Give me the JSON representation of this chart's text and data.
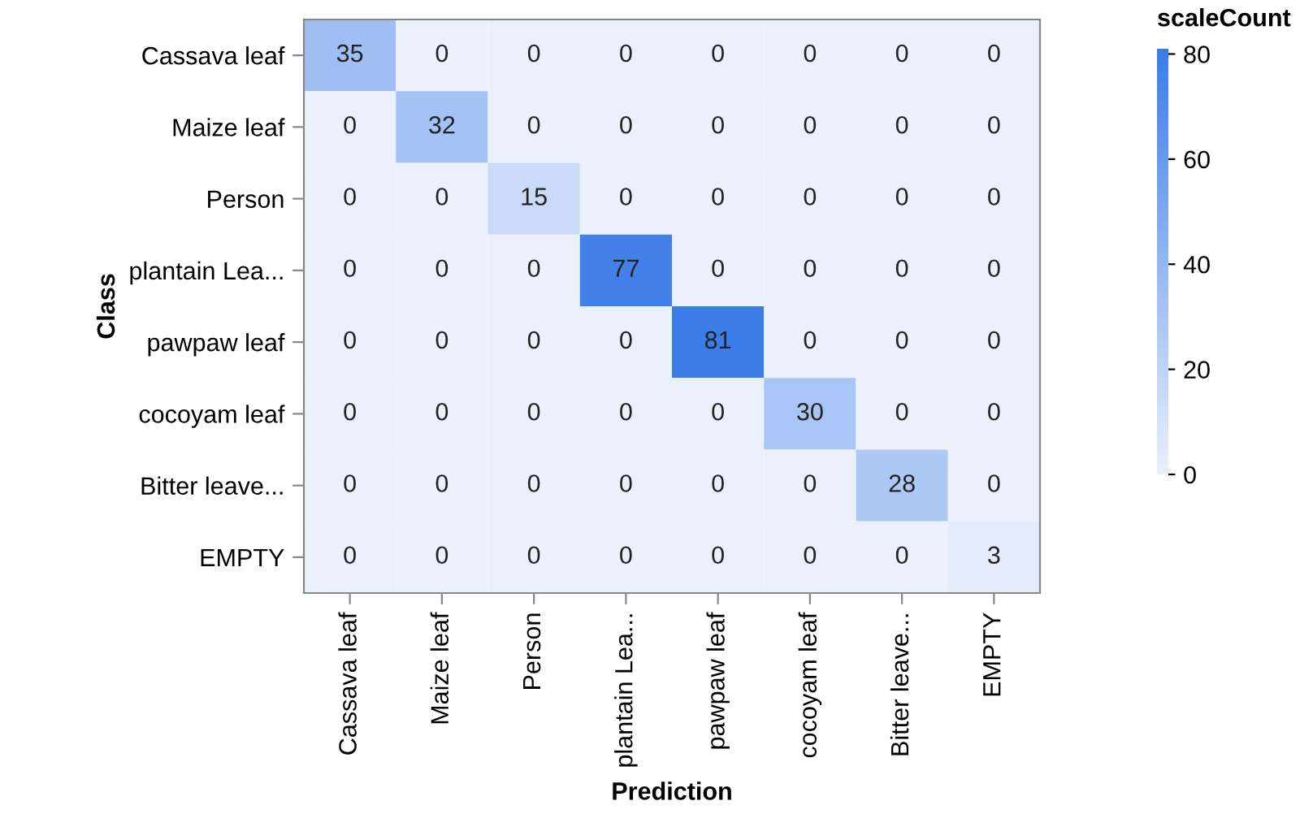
{
  "chart_data": {
    "type": "heatmap",
    "xlabel": "Prediction",
    "ylabel": "Class",
    "clabel": "scaleCount",
    "categories": [
      "Cassava leaf",
      "Maize leaf",
      "Person",
      "plantain Lea...",
      "pawpaw leaf",
      "cocoyam leaf",
      "Bitter leave...",
      "EMPTY"
    ],
    "y_categories": [
      "Cassava leaf",
      "Maize leaf",
      "Person",
      "plantain Lea...",
      "pawpaw leaf",
      "cocoyam leaf",
      "Bitter leave...",
      "EMPTY"
    ],
    "cells": [
      [
        35,
        0,
        0,
        0,
        0,
        0,
        0,
        0
      ],
      [
        0,
        32,
        0,
        0,
        0,
        0,
        0,
        0
      ],
      [
        0,
        0,
        15,
        0,
        0,
        0,
        0,
        0
      ],
      [
        0,
        0,
        0,
        77,
        0,
        0,
        0,
        0
      ],
      [
        0,
        0,
        0,
        0,
        81,
        0,
        0,
        0
      ],
      [
        0,
        0,
        0,
        0,
        0,
        30,
        0,
        0
      ],
      [
        0,
        0,
        0,
        0,
        0,
        0,
        28,
        0
      ],
      [
        0,
        0,
        0,
        0,
        0,
        0,
        0,
        3
      ]
    ],
    "colors": [
      "#eaf0fc",
      "#3b7ce8"
    ],
    "clim": [
      0,
      81
    ],
    "cticks": [
      0,
      20,
      40,
      60,
      80
    ],
    "data_labels": true,
    "grid": false
  }
}
